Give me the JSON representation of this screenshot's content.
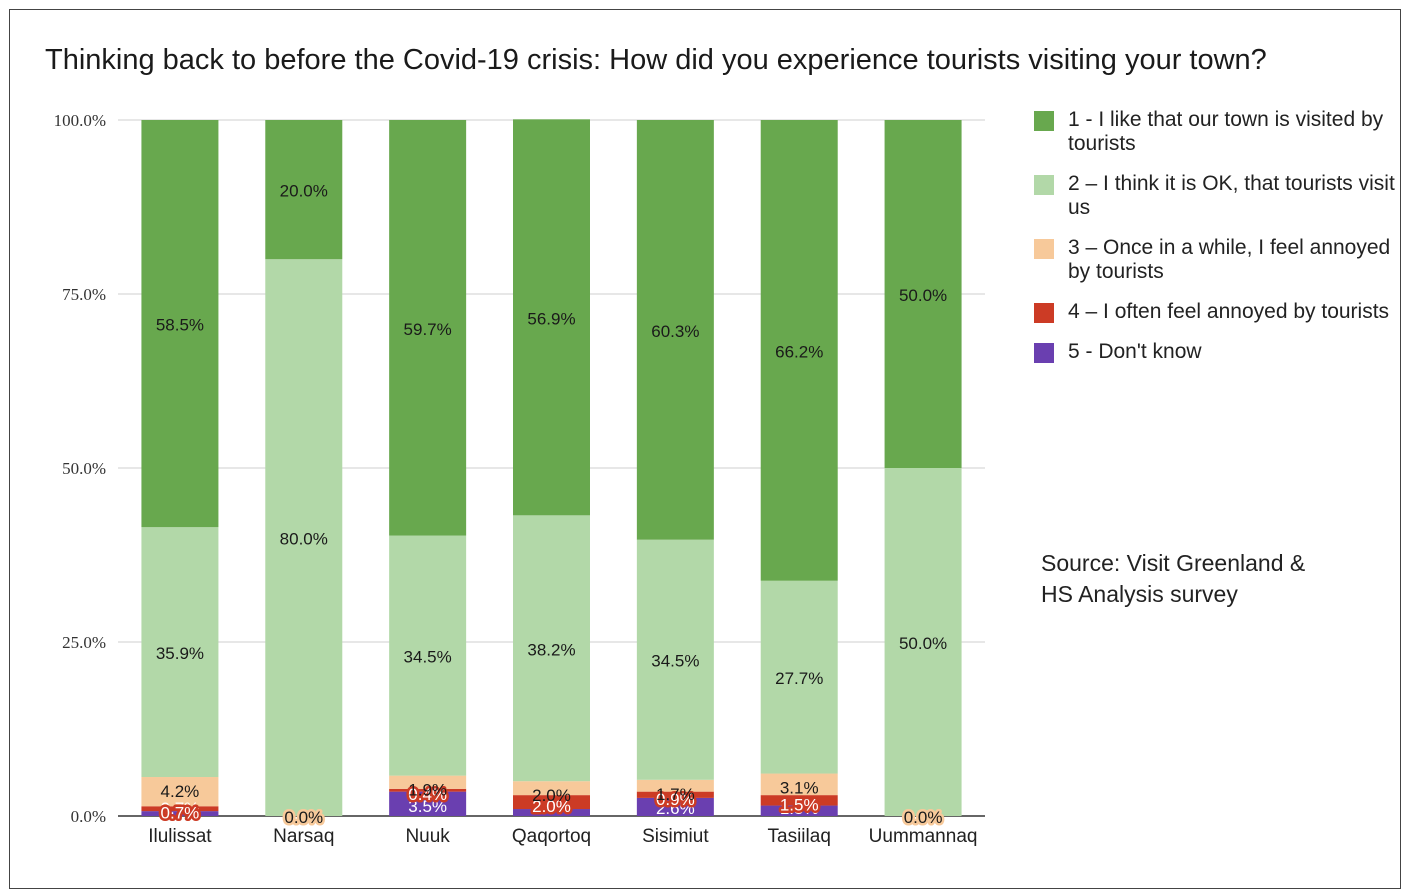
{
  "chart_data": {
    "type": "bar",
    "stacked": true,
    "title": "Thinking back to before the Covid-19 crisis: How did you experience tourists visiting your town?",
    "categories": [
      "Ilulissat",
      "Narsaq",
      "Nuuk",
      "Qaqortoq",
      "Sisimiut",
      "Tasiilaq",
      "Uummannaq"
    ],
    "ylim": [
      0,
      100
    ],
    "yticks": [
      "0.0%",
      "25.0%",
      "50.0%",
      "75.0%",
      "100.0%"
    ],
    "grid": true,
    "legend_position": "right",
    "series": [
      {
        "name": "5 - Don't know",
        "color": "#6a3fb0",
        "values": [
          0.7,
          0.0,
          3.5,
          1.0,
          2.6,
          1.5,
          0.0
        ]
      },
      {
        "name": "4 – I often feel annoyed by tourists",
        "color": "#cc3b25",
        "values": [
          0.7,
          0.0,
          0.4,
          2.0,
          0.9,
          1.5,
          0.0
        ]
      },
      {
        "name": "3 – Once in a while, I feel annoyed by tourists",
        "color": "#f7c99a",
        "values": [
          4.2,
          0.0,
          1.9,
          2.0,
          1.7,
          3.1,
          0.0
        ]
      },
      {
        "name": "2 – I think it is OK, that tourists visit us",
        "color": "#b2d8a8",
        "values": [
          35.9,
          80.0,
          34.5,
          38.2,
          34.5,
          27.7,
          50.0
        ]
      },
      {
        "name": "1 - I like that our town is visited by tourists",
        "color": "#68a84e",
        "values": [
          58.5,
          20.0,
          59.7,
          56.9,
          60.3,
          66.2,
          50.0
        ]
      }
    ],
    "data_labels": [
      [
        "0.7%",
        "",
        "3.5%",
        "1.0%",
        "2.6%",
        "1.5%",
        ""
      ],
      [
        "0.7%",
        "",
        "0.4%",
        "2.0%",
        "0.9%",
        "1.5%",
        ""
      ],
      [
        "4.2%",
        "0.0%",
        "1.9%",
        "2.0%",
        "1.7%",
        "3.1%",
        "0.0%"
      ],
      [
        "35.9%",
        "80.0%",
        "34.5%",
        "38.2%",
        "34.5%",
        "27.7%",
        "50.0%"
      ],
      [
        "58.5%",
        "20.0%",
        "59.7%",
        "56.9%",
        "60.3%",
        "66.2%",
        "50.0%"
      ]
    ]
  },
  "legend": [
    {
      "label": "1 - I like that our town is visited by tourists",
      "color": "#68a84e"
    },
    {
      "label": "2 – I think it is OK, that tourists visit us",
      "color": "#b2d8a8"
    },
    {
      "label": "3 – Once in a while, I feel annoyed by tourists",
      "color": "#f7c99a"
    },
    {
      "label": "4 – I often feel annoyed by tourists",
      "color": "#cc3b25"
    },
    {
      "label": "5 - Don't know",
      "color": "#6a3fb0"
    }
  ],
  "source_text": "Source: Visit Greenland &\nHS Analysis survey"
}
